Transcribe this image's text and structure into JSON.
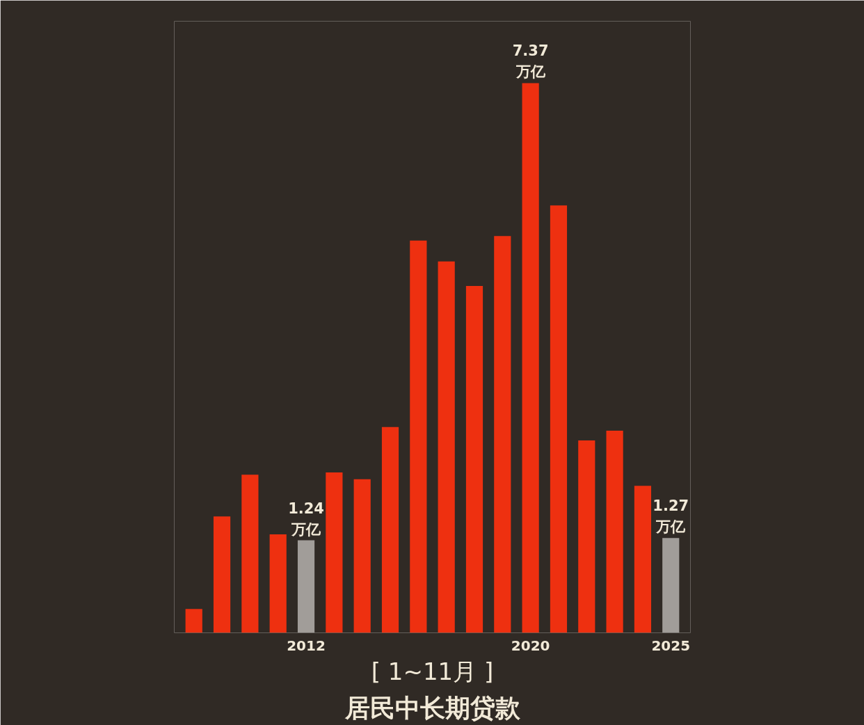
{
  "chart_data": {
    "type": "bar",
    "title": "居民中长期贷款",
    "subtitle": "[ 1~11月 ]",
    "categories": [
      null,
      null,
      null,
      null,
      "2012",
      null,
      null,
      null,
      null,
      null,
      null,
      null,
      "2020",
      null,
      null,
      null,
      null,
      "2025"
    ],
    "values": [
      0.32,
      1.56,
      2.12,
      1.32,
      1.24,
      2.15,
      2.06,
      2.76,
      5.26,
      4.98,
      4.65,
      5.32,
      7.37,
      5.73,
      2.58,
      2.71,
      1.97,
      1.27
    ],
    "colors": [
      "#ee3010",
      "#ee3010",
      "#ee3010",
      "#ee3010",
      "#a19d99",
      "#ee3010",
      "#ee3010",
      "#ee3010",
      "#ee3010",
      "#ee3010",
      "#ee3010",
      "#ee3010",
      "#ee3010",
      "#ee3010",
      "#ee3010",
      "#ee3010",
      "#ee3010",
      "#a19d99"
    ],
    "value_labels": [
      null,
      null,
      null,
      null,
      "1.24\n万亿",
      null,
      null,
      null,
      null,
      null,
      null,
      null,
      "7.37\n万亿",
      null,
      null,
      null,
      null,
      "1.27\n万亿"
    ],
    "ylim": [
      0,
      8.2
    ],
    "tick_labels": "x",
    "grid": false
  }
}
